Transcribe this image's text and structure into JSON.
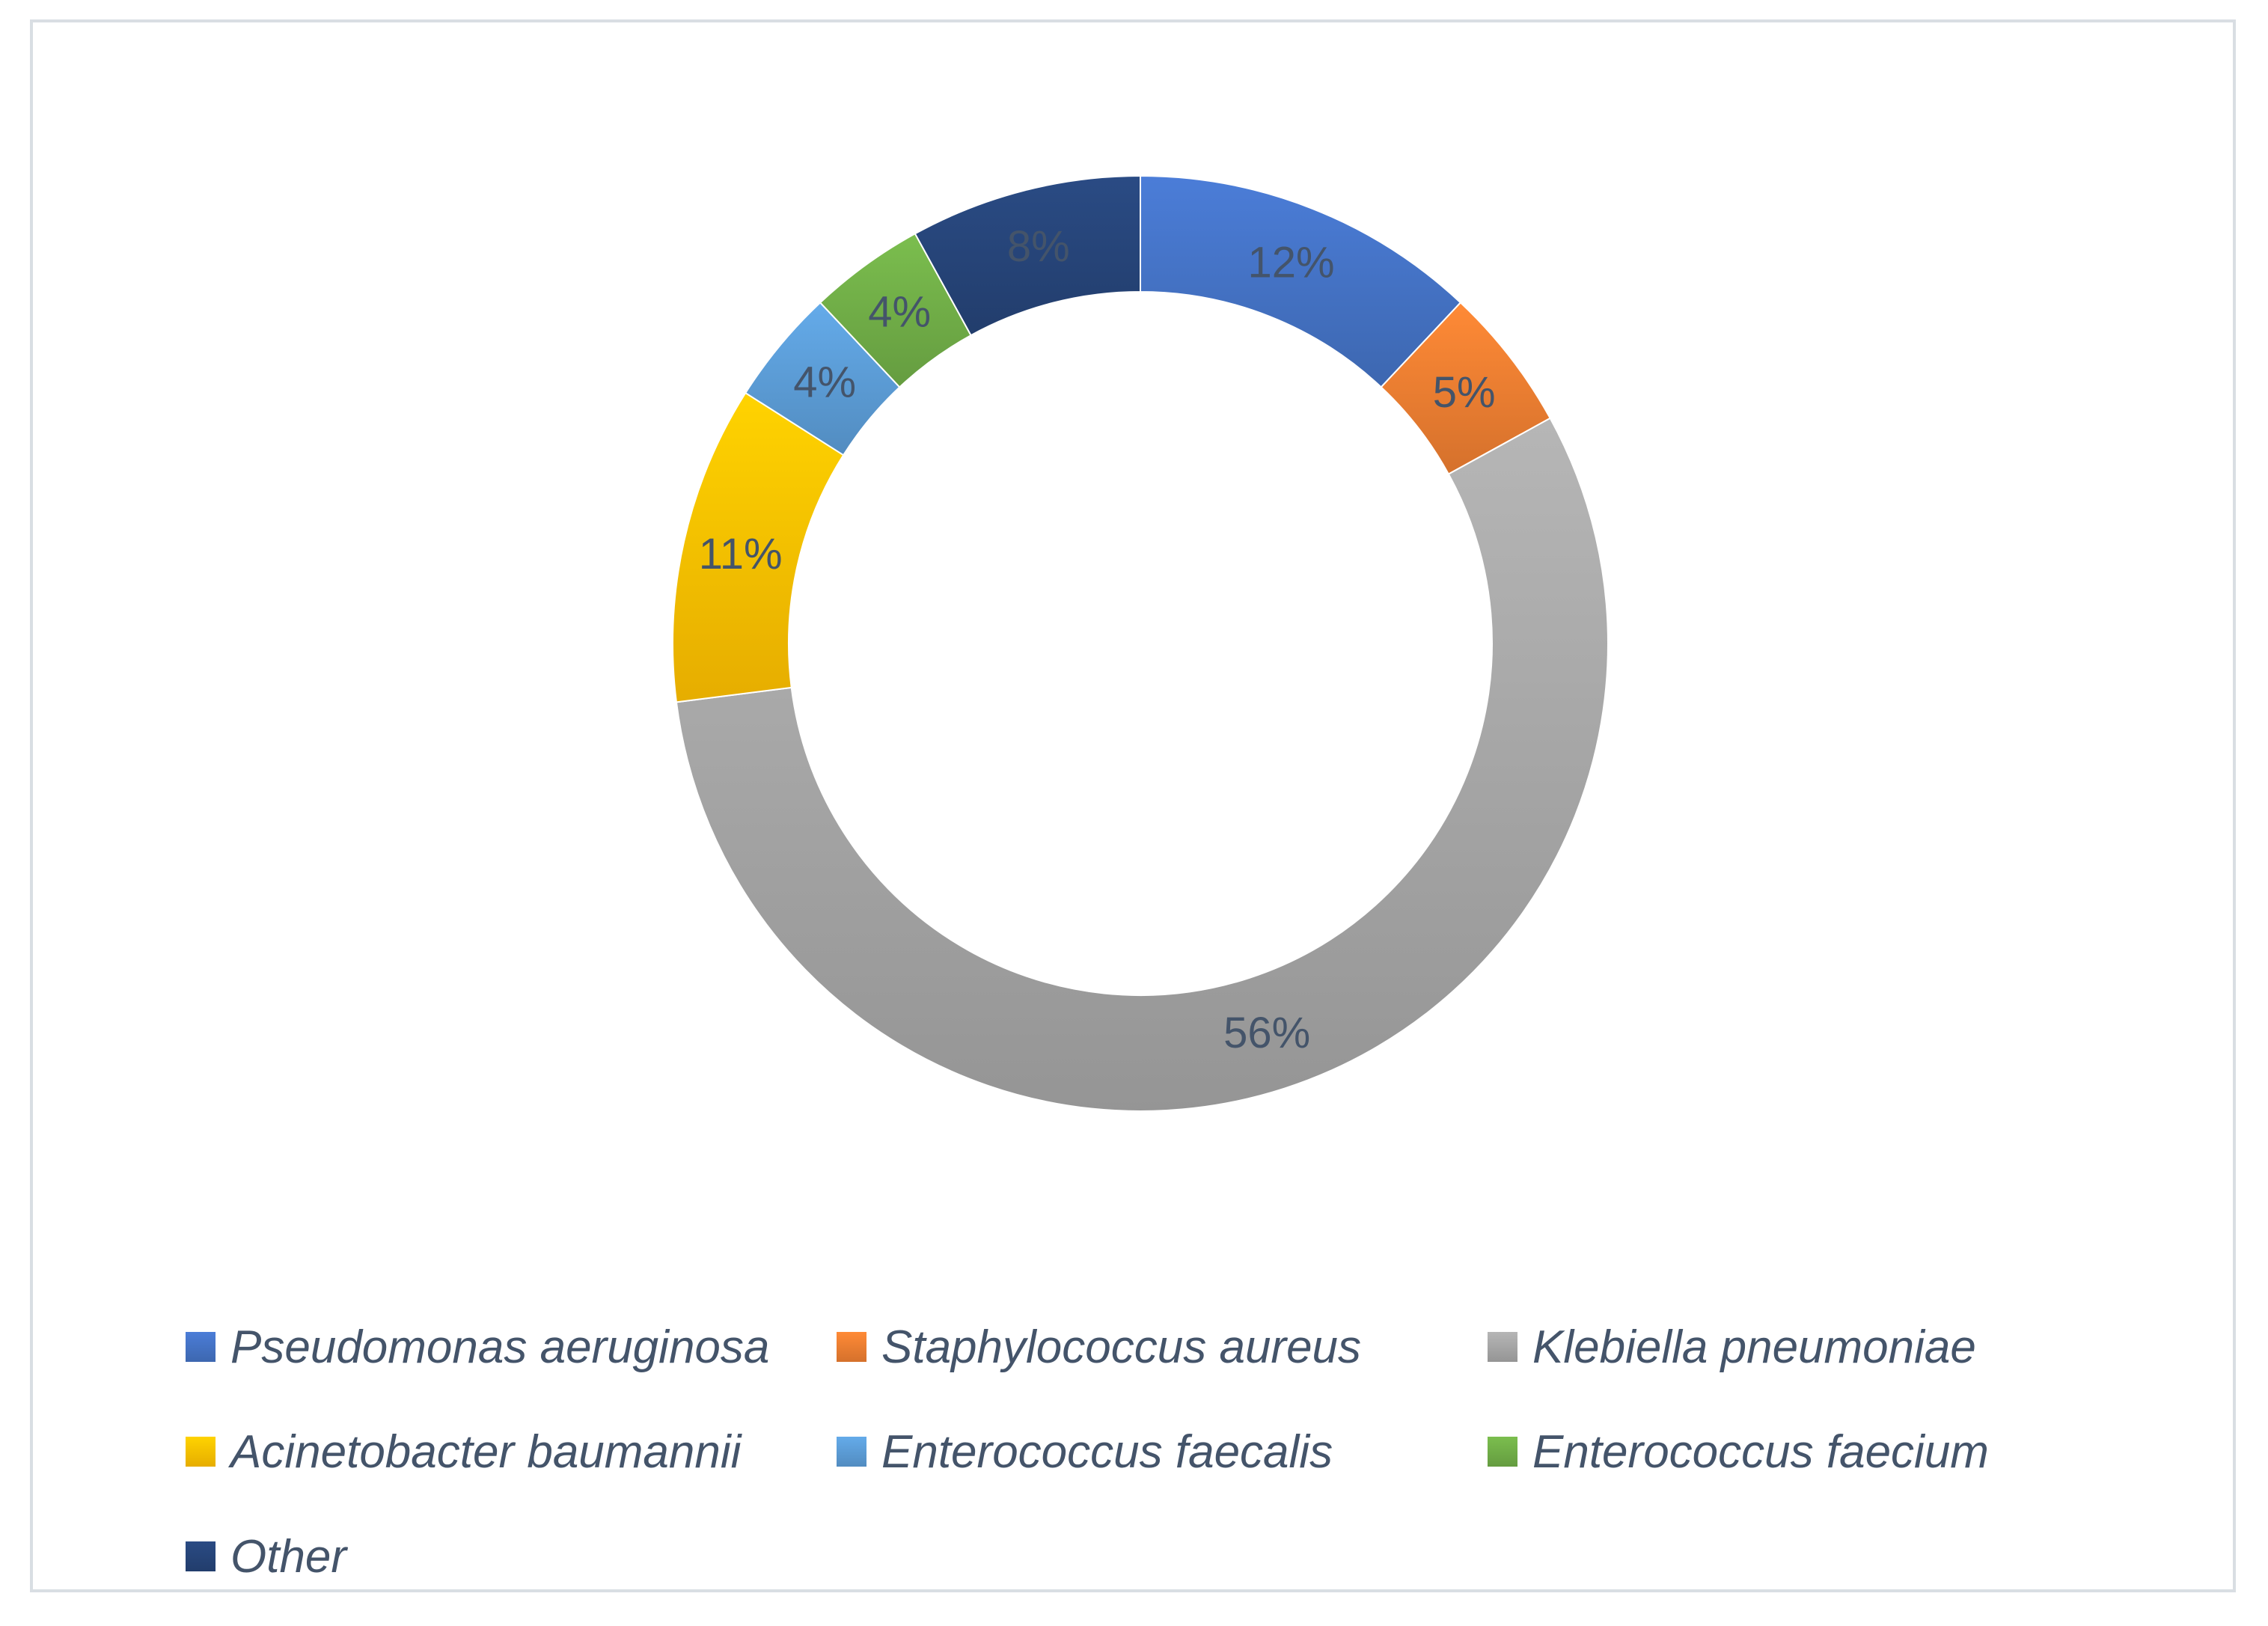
{
  "chart_data": {
    "type": "pie",
    "variant": "donut",
    "title": "",
    "legend_position": "bottom",
    "series": [
      {
        "name": "Pseudomonas aeruginosa",
        "value": 12,
        "label": "12%",
        "color": "#4472c4"
      },
      {
        "name": "Staphylococcus aureus",
        "value": 5,
        "label": "5%",
        "color": "#ed7d31"
      },
      {
        "name": "Klebiella pneumoniae",
        "value": 56,
        "label": "56%",
        "color": "#a5a5a5"
      },
      {
        "name": "Acinetobacter baumannii",
        "value": 11,
        "label": "11%",
        "color": "#ffc000"
      },
      {
        "name": "Enterococcus faecalis",
        "value": 4,
        "label": "4%",
        "color": "#5b9bd5"
      },
      {
        "name": "Enterococcus faecium",
        "value": 4,
        "label": "4%",
        "color": "#70ad47"
      },
      {
        "name": "Other",
        "value": 8,
        "label": "8%",
        "color": "#264478"
      }
    ]
  }
}
